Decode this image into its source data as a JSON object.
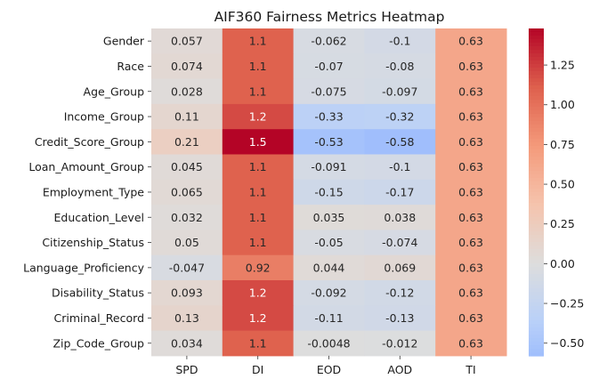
{
  "chart_data": {
    "type": "heatmap",
    "title": "AIF360 Fairness Metrics Heatmap",
    "xlabel": "",
    "ylabel": "",
    "x_categories": [
      "SPD",
      "DI",
      "EOD",
      "AOD",
      "TI"
    ],
    "y_categories": [
      "Gender",
      "Race",
      "Age_Group",
      "Income_Group",
      "Credit_Score_Group",
      "Loan_Amount_Group",
      "Employment_Type",
      "Education_Level",
      "Citizenship_Status",
      "Language_Proficiency",
      "Disability_Status",
      "Criminal_Record",
      "Zip_Code_Group"
    ],
    "values": [
      [
        0.057,
        1.1,
        -0.062,
        -0.1,
        0.63
      ],
      [
        0.074,
        1.1,
        -0.07,
        -0.08,
        0.63
      ],
      [
        0.028,
        1.1,
        -0.075,
        -0.097,
        0.63
      ],
      [
        0.11,
        1.2,
        -0.33,
        -0.32,
        0.63
      ],
      [
        0.21,
        1.5,
        -0.53,
        -0.58,
        0.63
      ],
      [
        0.045,
        1.1,
        -0.091,
        -0.1,
        0.63
      ],
      [
        0.065,
        1.1,
        -0.15,
        -0.17,
        0.63
      ],
      [
        0.032,
        1.1,
        0.035,
        0.038,
        0.63
      ],
      [
        0.05,
        1.1,
        -0.05,
        -0.074,
        0.63
      ],
      [
        -0.047,
        0.92,
        0.044,
        0.069,
        0.63
      ],
      [
        0.093,
        1.2,
        -0.092,
        -0.12,
        0.63
      ],
      [
        0.13,
        1.2,
        -0.11,
        -0.13,
        0.63
      ],
      [
        0.034,
        1.1,
        -0.0048,
        -0.012,
        0.63
      ]
    ],
    "colormap": "coolwarm",
    "center": 0,
    "colorbar": {
      "range": [
        -0.58,
        1.48
      ],
      "ticks": [
        -0.5,
        -0.25,
        0.0,
        0.25,
        0.5,
        0.75,
        1.0,
        1.25
      ],
      "tick_labels": [
        "−0.50",
        "−0.25",
        "0.00",
        "0.25",
        "0.50",
        "0.75",
        "1.00",
        "1.25"
      ]
    },
    "annotations": true,
    "grid": false
  }
}
